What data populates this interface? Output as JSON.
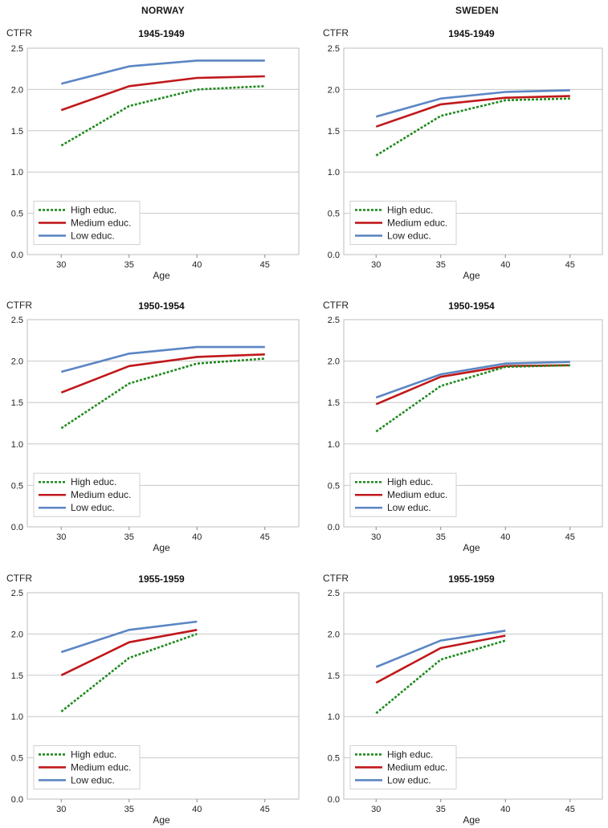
{
  "headers": {
    "left": "NORWAY",
    "right": "SWEDEN"
  },
  "colors": {
    "high": "#1f8a1f",
    "medium": "#c0181b",
    "low": "#5b86c4",
    "grid": "#c8c8c8",
    "frame": "#bdbdbd"
  },
  "chart_data": [
    {
      "type": "line",
      "title": "1945-1949",
      "ylabel": "CTFR",
      "xlabel": "Age",
      "x": [
        30,
        35,
        40,
        45
      ],
      "ylim": [
        0,
        2.5
      ],
      "yticks": [
        "0.0",
        "0.5",
        "1.0",
        "1.5",
        "2.0",
        "2.5"
      ],
      "xticks": [
        "30",
        "35",
        "40",
        "45"
      ],
      "grid": true,
      "legend": "bottom-left",
      "series": [
        {
          "name": "High educ.",
          "style": "dotted",
          "values": [
            1.32,
            1.8,
            2.0,
            2.04
          ]
        },
        {
          "name": "Medium educ.",
          "style": "solid",
          "values": [
            1.75,
            2.04,
            2.14,
            2.16
          ]
        },
        {
          "name": "Low educ.",
          "style": "solid",
          "values": [
            2.07,
            2.28,
            2.35,
            2.35
          ]
        }
      ]
    },
    {
      "type": "line",
      "title": "1945-1949",
      "ylabel": "CTFR",
      "xlabel": "Age",
      "x": [
        30,
        35,
        40,
        45
      ],
      "ylim": [
        0,
        2.5
      ],
      "yticks": [
        "0.0",
        "0.5",
        "1.0",
        "1.5",
        "2.0",
        "2.5"
      ],
      "xticks": [
        "30",
        "35",
        "40",
        "45"
      ],
      "grid": true,
      "legend": "bottom-left",
      "series": [
        {
          "name": "High educ.",
          "style": "dotted",
          "values": [
            1.2,
            1.68,
            1.87,
            1.89
          ]
        },
        {
          "name": "Medium educ.",
          "style": "solid",
          "values": [
            1.55,
            1.82,
            1.9,
            1.92
          ]
        },
        {
          "name": "Low educ.",
          "style": "solid",
          "values": [
            1.67,
            1.89,
            1.97,
            1.99
          ]
        }
      ]
    },
    {
      "type": "line",
      "title": "1950-1954",
      "ylabel": "CTFR",
      "xlabel": "Age",
      "x": [
        30,
        35,
        40,
        45
      ],
      "ylim": [
        0,
        2.5
      ],
      "yticks": [
        "0.0",
        "0.5",
        "1.0",
        "1.5",
        "2.0",
        "2.5"
      ],
      "xticks": [
        "30",
        "35",
        "40",
        "45"
      ],
      "grid": true,
      "legend": "bottom-left",
      "series": [
        {
          "name": "High educ.",
          "style": "dotted",
          "values": [
            1.19,
            1.73,
            1.97,
            2.03
          ]
        },
        {
          "name": "Medium educ.",
          "style": "solid",
          "values": [
            1.62,
            1.94,
            2.05,
            2.08
          ]
        },
        {
          "name": "Low educ.",
          "style": "solid",
          "values": [
            1.87,
            2.09,
            2.17,
            2.17
          ]
        }
      ]
    },
    {
      "type": "line",
      "title": "1950-1954",
      "ylabel": "CTFR",
      "xlabel": "Age",
      "x": [
        30,
        35,
        40,
        45
      ],
      "ylim": [
        0,
        2.5
      ],
      "yticks": [
        "0.0",
        "0.5",
        "1.0",
        "1.5",
        "2.0",
        "2.5"
      ],
      "xticks": [
        "30",
        "35",
        "40",
        "45"
      ],
      "grid": true,
      "legend": "bottom-left",
      "series": [
        {
          "name": "High educ.",
          "style": "dotted",
          "values": [
            1.15,
            1.7,
            1.93,
            1.95
          ]
        },
        {
          "name": "Medium educ.",
          "style": "solid",
          "values": [
            1.48,
            1.81,
            1.94,
            1.95
          ]
        },
        {
          "name": "Low educ.",
          "style": "solid",
          "values": [
            1.56,
            1.84,
            1.97,
            1.99
          ]
        }
      ]
    },
    {
      "type": "line",
      "title": "1955-1959",
      "ylabel": "CTFR",
      "xlabel": "Age",
      "x": [
        30,
        35,
        40,
        45
      ],
      "ylim": [
        0,
        2.5
      ],
      "yticks": [
        "0.0",
        "0.5",
        "1.0",
        "1.5",
        "2.0",
        "2.5"
      ],
      "xticks": [
        "30",
        "35",
        "40",
        "45"
      ],
      "grid": true,
      "legend": "bottom-left",
      "series": [
        {
          "name": "High educ.",
          "style": "dotted",
          "values": [
            1.06,
            1.71,
            2.0,
            null
          ]
        },
        {
          "name": "Medium educ.",
          "style": "solid",
          "values": [
            1.5,
            1.9,
            2.05,
            null
          ]
        },
        {
          "name": "Low educ.",
          "style": "solid",
          "values": [
            1.78,
            2.05,
            2.15,
            null
          ]
        }
      ]
    },
    {
      "type": "line",
      "title": "1955-1959",
      "ylabel": "CTFR",
      "xlabel": "Age",
      "x": [
        30,
        35,
        40,
        45
      ],
      "ylim": [
        0,
        2.5
      ],
      "yticks": [
        "0.0",
        "0.5",
        "1.0",
        "1.5",
        "2.0",
        "2.5"
      ],
      "xticks": [
        "30",
        "35",
        "40",
        "45"
      ],
      "grid": true,
      "legend": "bottom-left",
      "series": [
        {
          "name": "High educ.",
          "style": "dotted",
          "values": [
            1.04,
            1.69,
            1.92,
            null
          ]
        },
        {
          "name": "Medium educ.",
          "style": "solid",
          "values": [
            1.41,
            1.83,
            1.98,
            null
          ]
        },
        {
          "name": "Low educ.",
          "style": "solid",
          "values": [
            1.6,
            1.92,
            2.04,
            null
          ]
        }
      ]
    }
  ]
}
